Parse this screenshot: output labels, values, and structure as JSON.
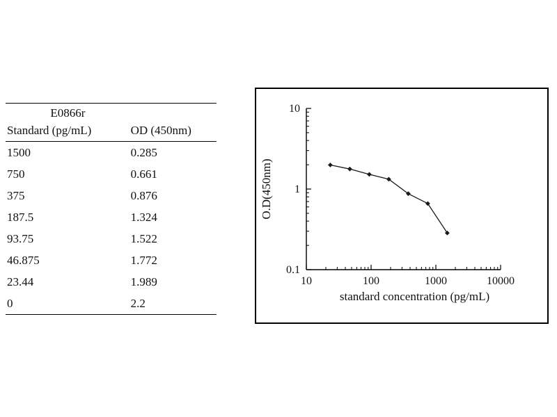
{
  "table": {
    "title": "E0866r",
    "columns": [
      "Standard (pg/mL)",
      "OD (450nm)"
    ],
    "rows": [
      [
        "1500",
        "0.285"
      ],
      [
        "750",
        "0.661"
      ],
      [
        "375",
        "0.876"
      ],
      [
        "187.5",
        "1.324"
      ],
      [
        "93.75",
        "1.522"
      ],
      [
        "46.875",
        "1.772"
      ],
      [
        "23.44",
        "1.989"
      ],
      [
        "0",
        "2.2"
      ]
    ]
  },
  "chart_data": {
    "type": "line",
    "x": [
      23.44,
      46.875,
      93.75,
      187.5,
      375,
      750,
      1500
    ],
    "y": [
      1.989,
      1.772,
      1.522,
      1.324,
      0.876,
      0.661,
      0.285
    ],
    "title": "",
    "xlabel": "standard concentration (pg/mL)",
    "ylabel": "O.D(450nm)",
    "xlim": [
      10,
      10000
    ],
    "ylim": [
      0.1,
      10
    ],
    "xscale": "log",
    "yscale": "log",
    "x_ticks": [
      "10",
      "100",
      "1000",
      "10000"
    ],
    "y_ticks": [
      "0.1",
      "1",
      "10"
    ],
    "grid": false,
    "legend": "none",
    "marker": "diamond",
    "line_color": "#1a1a1a",
    "axis_color": "#000000"
  }
}
